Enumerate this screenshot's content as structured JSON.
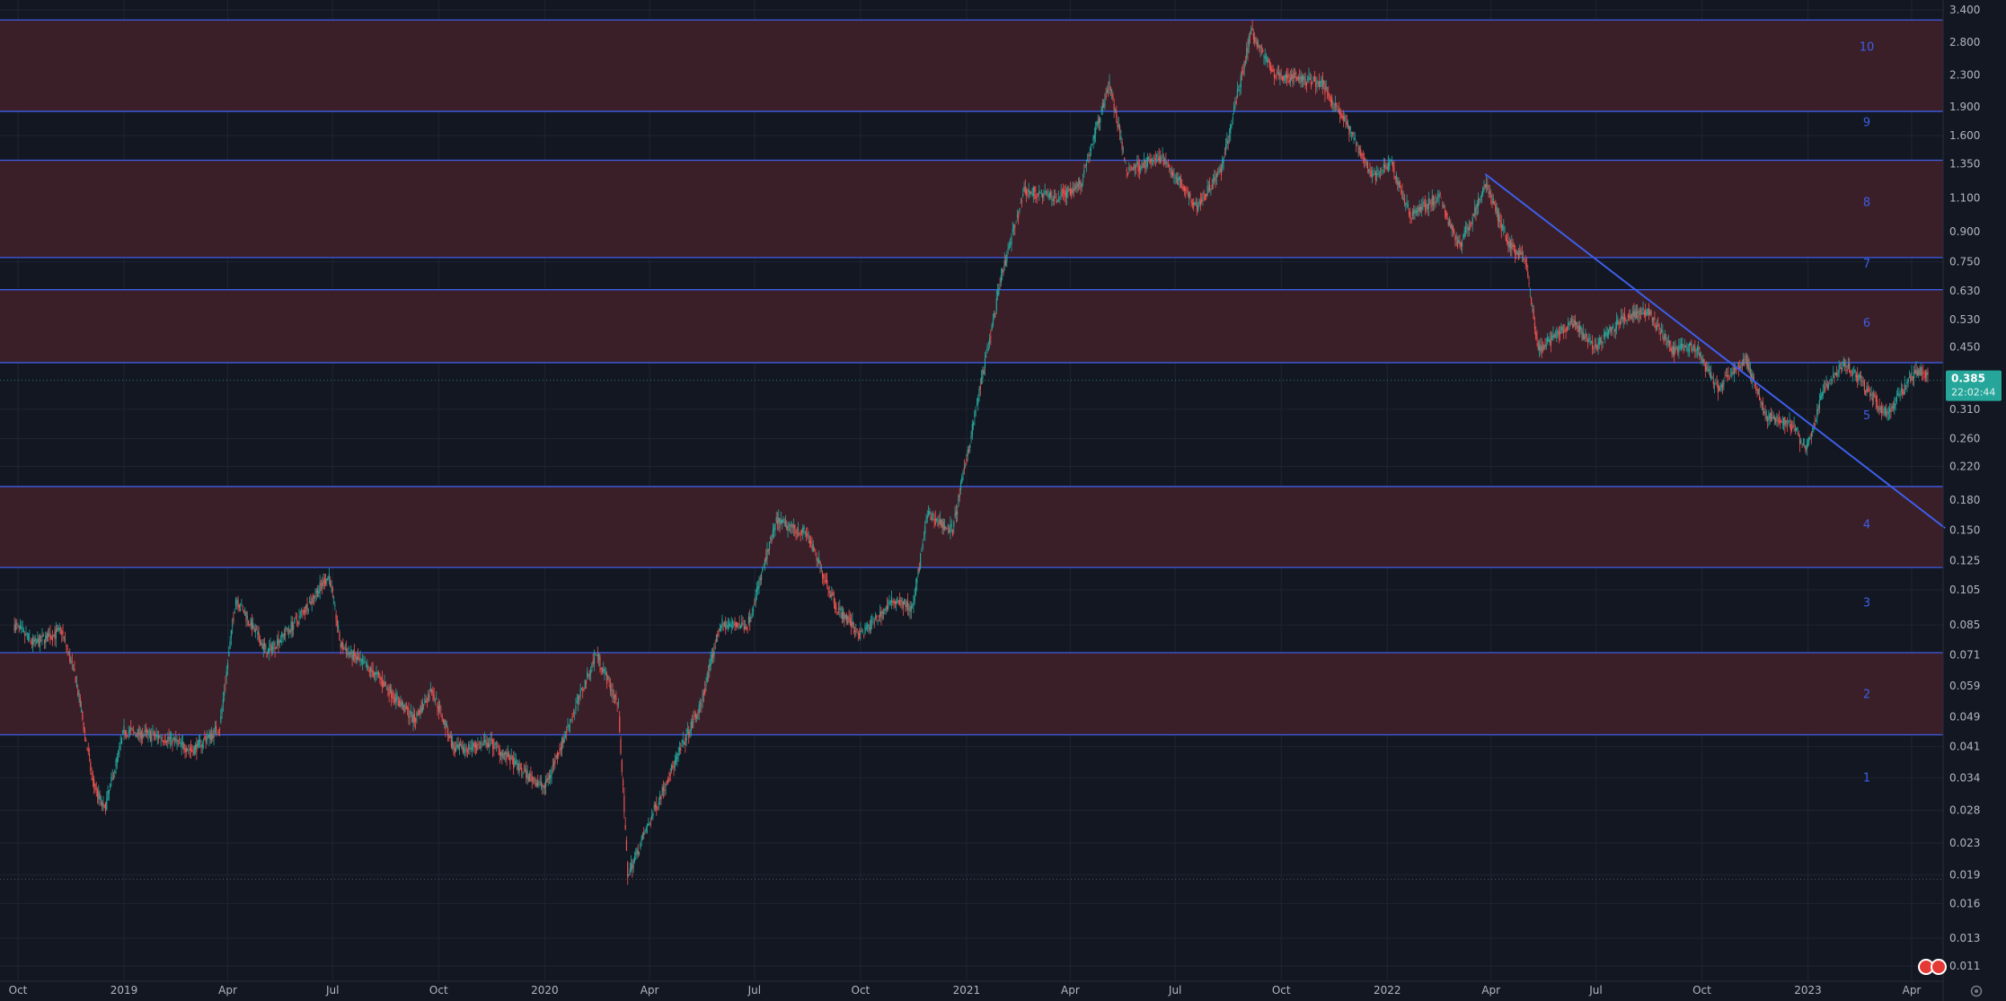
{
  "chart_data": {
    "type": "candlestick",
    "scale": "log",
    "grid": true,
    "y_ticks": [
      "3.400",
      "2.800",
      "2.300",
      "1.900",
      "1.600",
      "1.350",
      "1.100",
      "0.900",
      "0.750",
      "0.630",
      "0.530",
      "0.450",
      "0.310",
      "0.260",
      "0.220",
      "0.180",
      "0.150",
      "0.125",
      "0.105",
      "0.085",
      "0.071",
      "0.059",
      "0.049",
      "0.041",
      "0.034",
      "0.028",
      "0.023",
      "0.019",
      "0.016",
      "0.013",
      "0.011"
    ],
    "x_ticks": [
      {
        "label": "Oct",
        "date": "2018-10-01"
      },
      {
        "label": "2019",
        "date": "2019-01-01"
      },
      {
        "label": "Apr",
        "date": "2019-04-01"
      },
      {
        "label": "Jul",
        "date": "2019-07-01"
      },
      {
        "label": "Oct",
        "date": "2019-10-01"
      },
      {
        "label": "2020",
        "date": "2020-01-01"
      },
      {
        "label": "Apr",
        "date": "2020-04-01"
      },
      {
        "label": "Jul",
        "date": "2020-07-01"
      },
      {
        "label": "Oct",
        "date": "2020-10-01"
      },
      {
        "label": "2021",
        "date": "2021-01-01"
      },
      {
        "label": "Apr",
        "date": "2021-04-01"
      },
      {
        "label": "Jul",
        "date": "2021-07-01"
      },
      {
        "label": "Oct",
        "date": "2021-10-01"
      },
      {
        "label": "2022",
        "date": "2022-01-01"
      },
      {
        "label": "Apr",
        "date": "2022-04-01"
      },
      {
        "label": "Jul",
        "date": "2022-07-01"
      },
      {
        "label": "Oct",
        "date": "2022-10-01"
      },
      {
        "label": "2023",
        "date": "2023-01-01"
      },
      {
        "label": "Apr",
        "date": "2023-04-01"
      }
    ],
    "levels": [
      3.2,
      1.85,
      1.38,
      0.77,
      0.635,
      0.41,
      0.195,
      0.12,
      0.072,
      0.044
    ],
    "zones": [
      {
        "label": "10",
        "top": 3.2,
        "bottom": 1.85
      },
      {
        "label": "8",
        "top": 1.38,
        "bottom": 0.77
      },
      {
        "label": "6",
        "top": 0.635,
        "bottom": 0.41
      },
      {
        "label": "4",
        "top": 0.195,
        "bottom": 0.12
      },
      {
        "label": "2",
        "top": 0.072,
        "bottom": 0.044
      }
    ],
    "level_labels": [
      {
        "label": "10",
        "value": 2.72
      },
      {
        "label": "9",
        "value": 1.73
      },
      {
        "label": "8",
        "value": 1.07
      },
      {
        "label": "7",
        "value": 0.74
      },
      {
        "label": "6",
        "value": 0.52
      },
      {
        "label": "5",
        "value": 0.298
      },
      {
        "label": "4",
        "value": 0.155
      },
      {
        "label": "3",
        "value": 0.097
      },
      {
        "label": "2",
        "value": 0.056
      },
      {
        "label": "1",
        "value": 0.034
      }
    ],
    "trendline": [
      {
        "date": "2022-03-27",
        "value": 1.27
      },
      {
        "date": "2023-04-30",
        "value": 0.152
      }
    ],
    "price_path": [
      [
        "2018-09-28",
        0.085
      ],
      [
        "2018-10-15",
        0.076
      ],
      [
        "2018-11-08",
        0.082
      ],
      [
        "2018-11-20",
        0.062
      ],
      [
        "2018-12-05",
        0.033
      ],
      [
        "2018-12-15",
        0.028
      ],
      [
        "2019-01-01",
        0.045
      ],
      [
        "2019-02-10",
        0.043
      ],
      [
        "2019-03-01",
        0.04
      ],
      [
        "2019-03-25",
        0.046
      ],
      [
        "2019-04-08",
        0.1
      ],
      [
        "2019-05-05",
        0.072
      ],
      [
        "2019-06-01",
        0.088
      ],
      [
        "2019-06-28",
        0.115
      ],
      [
        "2019-07-08",
        0.075
      ],
      [
        "2019-08-10",
        0.062
      ],
      [
        "2019-09-10",
        0.048
      ],
      [
        "2019-09-25",
        0.058
      ],
      [
        "2019-10-15",
        0.04
      ],
      [
        "2019-11-15",
        0.042
      ],
      [
        "2019-12-15",
        0.035
      ],
      [
        "2020-01-01",
        0.032
      ],
      [
        "2020-02-15",
        0.072
      ],
      [
        "2020-03-05",
        0.052
      ],
      [
        "2020-03-13",
        0.019
      ],
      [
        "2020-04-15",
        0.033
      ],
      [
        "2020-05-15",
        0.052
      ],
      [
        "2020-06-01",
        0.085
      ],
      [
        "2020-06-25",
        0.085
      ],
      [
        "2020-07-20",
        0.158
      ],
      [
        "2020-08-15",
        0.148
      ],
      [
        "2020-09-10",
        0.095
      ],
      [
        "2020-10-01",
        0.08
      ],
      [
        "2020-11-01",
        0.1
      ],
      [
        "2020-11-15",
        0.093
      ],
      [
        "2020-11-28",
        0.165
      ],
      [
        "2020-12-20",
        0.15
      ],
      [
        "2021-01-10",
        0.32
      ],
      [
        "2021-02-01",
        0.7
      ],
      [
        "2021-02-20",
        1.15
      ],
      [
        "2021-03-20",
        1.1
      ],
      [
        "2021-04-10",
        1.2
      ],
      [
        "2021-05-05",
        2.2
      ],
      [
        "2021-05-20",
        1.3
      ],
      [
        "2021-06-20",
        1.4
      ],
      [
        "2021-07-20",
        1.05
      ],
      [
        "2021-08-10",
        1.3
      ],
      [
        "2021-09-05",
        3.0
      ],
      [
        "2021-09-25",
        2.3
      ],
      [
        "2021-11-05",
        2.2
      ],
      [
        "2021-11-25",
        1.75
      ],
      [
        "2021-12-20",
        1.25
      ],
      [
        "2022-01-05",
        1.35
      ],
      [
        "2022-01-20",
        1.0
      ],
      [
        "2022-02-15",
        1.1
      ],
      [
        "2022-03-05",
        0.82
      ],
      [
        "2022-03-28",
        1.2
      ],
      [
        "2022-04-15",
        0.85
      ],
      [
        "2022-05-01",
        0.75
      ],
      [
        "2022-05-12",
        0.44
      ],
      [
        "2022-06-10",
        0.52
      ],
      [
        "2022-07-01",
        0.45
      ],
      [
        "2022-07-25",
        0.54
      ],
      [
        "2022-08-15",
        0.56
      ],
      [
        "2022-09-05",
        0.44
      ],
      [
        "2022-09-25",
        0.45
      ],
      [
        "2022-10-15",
        0.35
      ],
      [
        "2022-11-08",
        0.42
      ],
      [
        "2022-11-25",
        0.3
      ],
      [
        "2022-12-20",
        0.28
      ],
      [
        "2022-12-30",
        0.24
      ],
      [
        "2023-01-15",
        0.35
      ],
      [
        "2023-02-01",
        0.41
      ],
      [
        "2023-02-15",
        0.37
      ],
      [
        "2023-03-10",
        0.3
      ],
      [
        "2023-04-05",
        0.39
      ],
      [
        "2023-04-15",
        0.385
      ]
    ],
    "last_price": {
      "value": "0.385",
      "countdown": "22:02:44"
    },
    "bottom_line": 0.0185
  }
}
